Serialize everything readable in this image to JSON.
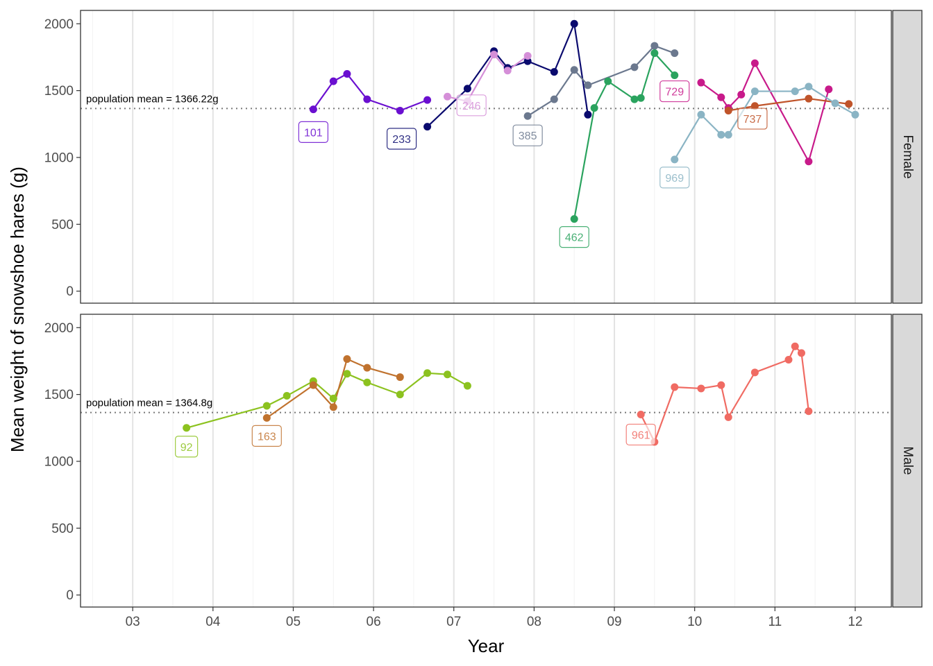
{
  "chart_data": {
    "type": "line",
    "xlabel": "Year",
    "ylabel": "Mean weight of snowshoe hares (g)",
    "xlim": [
      2.35,
      12.45
    ],
    "ylim": [
      -90,
      2100
    ],
    "x_ticks": [
      3,
      4,
      5,
      6,
      7,
      8,
      9,
      10,
      11,
      12
    ],
    "x_tick_labels": [
      "03",
      "04",
      "05",
      "06",
      "07",
      "08",
      "09",
      "10",
      "11",
      "12"
    ],
    "y_ticks": [
      0,
      500,
      1000,
      1500,
      2000
    ],
    "y_tick_labels": [
      "0",
      "500",
      "1000",
      "1500",
      "2000"
    ],
    "grid": "vertical major and minor lines",
    "legend": "none",
    "panels": [
      {
        "strip": "Female",
        "mean_value": 1366.22,
        "mean_label": "population mean = 1366.22g",
        "series": [
          {
            "id": "101",
            "color": "#6a0fd0",
            "label_pos": [
              5.25,
              1190
            ],
            "x": [
              5.25,
              5.5,
              5.67,
              5.92,
              6.33,
              6.67
            ],
            "y": [
              1360,
              1570,
              1625,
              1435,
              1350,
              1430
            ]
          },
          {
            "id": "233",
            "color": "#0a0a6e",
            "label_pos": [
              6.35,
              1140
            ],
            "x": [
              6.67,
              7.17,
              7.5,
              7.67,
              7.92,
              8.25,
              8.5,
              8.67
            ],
            "y": [
              1230,
              1515,
              1795,
              1670,
              1720,
              1640,
              2000,
              1320
            ]
          },
          {
            "id": "246",
            "color": "#d58fd8",
            "label_pos": [
              7.22,
              1390
            ],
            "x": [
              6.92,
              7.17,
              7.5,
              7.67,
              7.92
            ],
            "y": [
              1455,
              1420,
              1770,
              1650,
              1760
            ]
          },
          {
            "id": "385",
            "color": "#6b788e",
            "label_pos": [
              7.92,
              1165
            ],
            "x": [
              7.92,
              8.25,
              8.5,
              8.67,
              9.25,
              9.5,
              9.75
            ],
            "y": [
              1310,
              1435,
              1655,
              1540,
              1675,
              1835,
              1780
            ]
          },
          {
            "id": "462",
            "color": "#2aa35e",
            "label_pos": [
              8.5,
              405
            ],
            "x": [
              8.5,
              8.75,
              8.92,
              9.25,
              9.33,
              9.5,
              9.75
            ],
            "y": [
              540,
              1370,
              1570,
              1435,
              1445,
              1780,
              1615
            ]
          },
          {
            "id": "729",
            "color": "#c81a8a",
            "label_pos": [
              9.75,
              1495
            ],
            "x": [
              10.08,
              10.33,
              10.42,
              10.58,
              10.75,
              11.42,
              11.67
            ],
            "y": [
              1560,
              1450,
              1370,
              1470,
              1705,
              970,
              1510
            ]
          },
          {
            "id": "737",
            "color": "#c0542a",
            "label_pos": [
              10.72,
              1290
            ],
            "x": [
              10.42,
              10.75,
              11.42,
              11.92
            ],
            "y": [
              1350,
              1385,
              1440,
              1400
            ]
          },
          {
            "id": "969",
            "color": "#8ab4c4",
            "label_pos": [
              9.75,
              850
            ],
            "x": [
              9.75,
              10.08,
              10.33,
              10.42,
              10.75,
              11.25,
              11.42,
              11.75,
              12.0
            ],
            "y": [
              985,
              1320,
              1170,
              1170,
              1495,
              1495,
              1530,
              1405,
              1320
            ]
          }
        ]
      },
      {
        "strip": "Male",
        "mean_value": 1364.8,
        "mean_label": "population mean = 1364.8g",
        "series": [
          {
            "id": "92",
            "color": "#8cc21f",
            "label_pos": [
              3.67,
              1110
            ],
            "x": [
              3.67,
              4.67,
              4.92,
              5.25,
              5.5,
              5.67,
              5.92,
              6.33,
              6.67,
              6.92,
              7.17
            ],
            "y": [
              1250,
              1415,
              1490,
              1600,
              1470,
              1655,
              1590,
              1500,
              1660,
              1650,
              1565
            ]
          },
          {
            "id": "163",
            "color": "#c0722e",
            "label_pos": [
              4.67,
              1190
            ],
            "x": [
              4.67,
              5.25,
              5.5,
              5.67,
              5.92,
              6.33
            ],
            "y": [
              1325,
              1570,
              1405,
              1765,
              1700,
              1630
            ]
          },
          {
            "id": "961",
            "color": "#f06b63",
            "label_pos": [
              9.33,
              1200
            ],
            "x": [
              9.33,
              9.5,
              9.75,
              10.08,
              10.33,
              10.42,
              10.75,
              11.17,
              11.25,
              11.33,
              11.42
            ],
            "y": [
              1350,
              1145,
              1555,
              1545,
              1570,
              1330,
              1665,
              1760,
              1860,
              1810,
              1375
            ]
          }
        ]
      }
    ]
  }
}
